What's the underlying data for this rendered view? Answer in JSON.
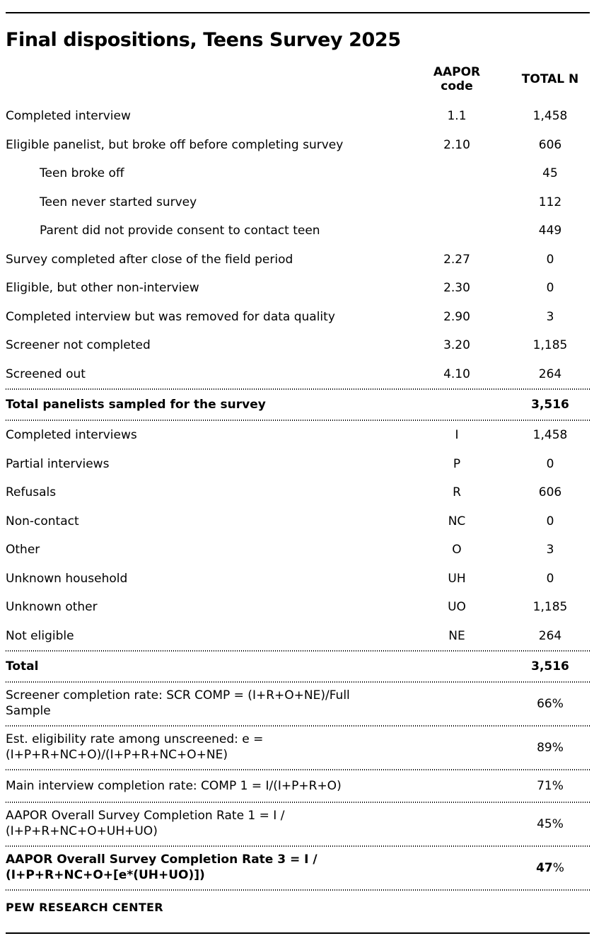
{
  "page": {
    "title": "Final dispositions, Teens Survey 2025",
    "source": "PEW RESEARCH CENTER"
  },
  "table": {
    "columns": {
      "code": "AAPOR\ncode",
      "n": "TOTAL N"
    },
    "rows": [
      {
        "label": "Completed interview",
        "code": "1.1",
        "n": "1,458"
      },
      {
        "label": "Eligible panelist, but broke off before completing survey",
        "code": "2.10",
        "n": "606"
      },
      {
        "label": "Teen broke off",
        "code": "",
        "n": "45"
      },
      {
        "label": "Teen never started survey",
        "code": "",
        "n": "112"
      },
      {
        "label": "Parent did not provide consent to contact teen",
        "code": "",
        "n": "449"
      },
      {
        "label": "Survey completed after close of the field period",
        "code": "2.27",
        "n": "0"
      },
      {
        "label": "Eligible, but other non-interview",
        "code": "2.30",
        "n": "0"
      },
      {
        "label": "Completed interview but was removed for data quality",
        "code": "2.90",
        "n": "3"
      },
      {
        "label": "Screener not completed",
        "code": "3.20",
        "n": "1,185"
      },
      {
        "label": "Screened out",
        "code": "4.10",
        "n": "264"
      },
      {
        "label": "Total panelists sampled for the survey",
        "code": "",
        "n": "3,516"
      },
      {
        "label": "Completed interviews",
        "code": "I",
        "n": "1,458"
      },
      {
        "label": "Partial interviews",
        "code": "P",
        "n": "0"
      },
      {
        "label": "Refusals",
        "code": "R",
        "n": "606"
      },
      {
        "label": "Non-contact",
        "code": "NC",
        "n": "0"
      },
      {
        "label": "Other",
        "code": "O",
        "n": "3"
      },
      {
        "label": "Unknown household",
        "code": "UH",
        "n": "0"
      },
      {
        "label": "Unknown other",
        "code": "UO",
        "n": "1,185"
      },
      {
        "label": "Not eligible",
        "code": "NE",
        "n": "264"
      },
      {
        "label": "Total",
        "code": "",
        "n": "3,516"
      },
      {
        "label": "Screener completion rate: SCR COMP = (I+R+O+NE)/Full",
        "label2": "Sample",
        "code": "",
        "n": "66%"
      },
      {
        "label": "Est. eligibility rate among unscreened: e =",
        "label2": "(I+P+R+NC+O)/(I+P+R+NC+O+NE)",
        "code": "",
        "n": "89%"
      },
      {
        "label": "Main interview completion rate: COMP 1 = I/(I+P+R+O)",
        "code": "",
        "n": "71%"
      },
      {
        "label": "AAPOR Overall Survey Completion Rate 1 = I /",
        "label2": "(I+P+R+NC+O+UH+UO)",
        "code": "",
        "n": "45%"
      },
      {
        "label": "AAPOR Overall Survey Completion Rate 3 = I /",
        "label2": "(I+P+R+NC+O+[e*(UH+UO)])",
        "code": "",
        "n": "47",
        "n_suffix": "%"
      }
    ]
  }
}
